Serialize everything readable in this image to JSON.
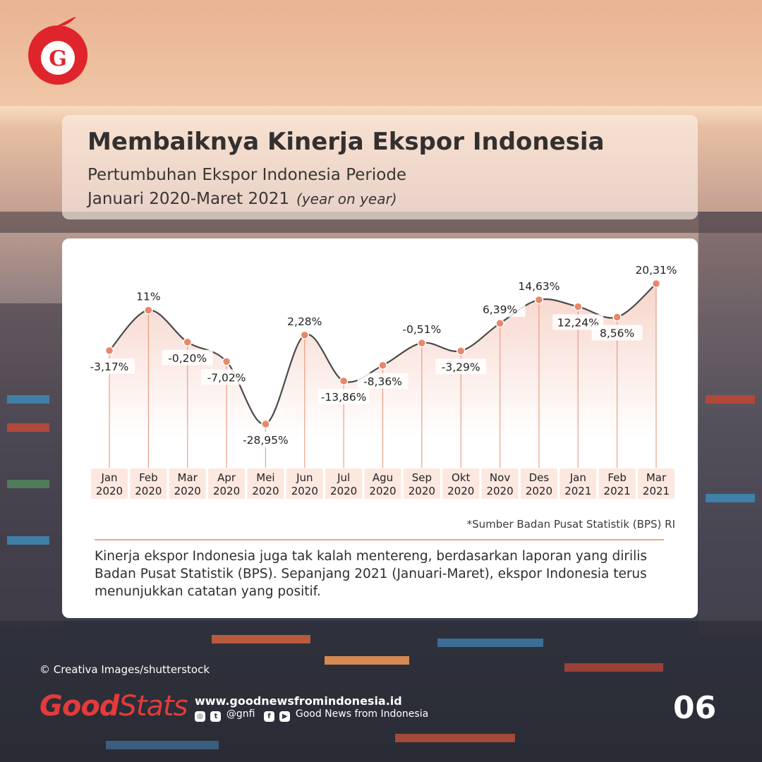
{
  "header": {
    "title": "Membaiknya Kinerja Ekspor Indonesia",
    "subtitle_line1": "Pertumbuhan Ekspor Indonesia Periode",
    "subtitle_line2": "Januari 2020-Maret 2021",
    "subtitle_note": "(year on year)"
  },
  "colors": {
    "accent": "#e8876a",
    "line": "#4a4a4a",
    "tick_bg": "#fde8e0",
    "brand_red": "#e33b3b"
  },
  "chart_data": {
    "type": "line",
    "categories": [
      "Jan 2020",
      "Feb 2020",
      "Mar 2020",
      "Apr 2020",
      "Mei 2020",
      "Jun 2020",
      "Jul 2020",
      "Agu 2020",
      "Sep 2020",
      "Okt 2020",
      "Nov 2020",
      "Des 2020",
      "Jan 2021",
      "Feb 2021",
      "Mar 2021"
    ],
    "tick_labels": [
      [
        "Jan",
        "2020"
      ],
      [
        "Feb",
        "2020"
      ],
      [
        "Mar",
        "2020"
      ],
      [
        "Apr",
        "2020"
      ],
      [
        "Mei",
        "2020"
      ],
      [
        "Jun",
        "2020"
      ],
      [
        "Jul",
        "2020"
      ],
      [
        "Agu",
        "2020"
      ],
      [
        "Sep",
        "2020"
      ],
      [
        "Okt",
        "2020"
      ],
      [
        "Nov",
        "2020"
      ],
      [
        "Des",
        "2020"
      ],
      [
        "Jan",
        "2021"
      ],
      [
        "Feb",
        "2021"
      ],
      [
        "Mar",
        "2021"
      ]
    ],
    "values": [
      -3.17,
      11,
      -0.2,
      -7.02,
      -28.95,
      2.28,
      -13.86,
      -8.36,
      -0.51,
      -3.29,
      6.39,
      14.63,
      12.24,
      8.56,
      20.31
    ],
    "labels": [
      "-3,17%",
      "11%",
      "-0,20%",
      "-7,02%",
      "-28,95%",
      "2,28%",
      "-13,86%",
      "-8,36%",
      "-0,51%",
      "-3,29%",
      "6,39%",
      "14,63%",
      "12,24%",
      "8,56%",
      "20,31%"
    ],
    "label_side": [
      "below",
      "above",
      "below",
      "below",
      "below",
      "above",
      "below",
      "below",
      "above",
      "below",
      "above",
      "above",
      "below",
      "below",
      "above"
    ],
    "xlabel": "",
    "ylabel": "",
    "grid": false,
    "smooth": true
  },
  "source": "*Sumber Badan Pusat Statistik (BPS) RI",
  "description": "Kinerja ekspor Indonesia juga tak kalah mentereng, berdasarkan laporan yang dirilis Badan Pusat Statistik (BPS). Sepanjang 2021 (Januari-Maret), ekspor Indonesia terus menunjukkan catatan yang positif.",
  "footer": {
    "photo_credit": "© Creativa Images/shutterstock",
    "brand_part1": "Good",
    "brand_part2": "Stats",
    "website": "www.goodnewsfromindonesia.id",
    "handle": "@gnfi",
    "name": "Good News from Indonesia",
    "page_number": "06"
  },
  "icons": [
    "logo-g-icon",
    "instagram-icon",
    "twitter-icon",
    "facebook-icon",
    "youtube-icon"
  ]
}
